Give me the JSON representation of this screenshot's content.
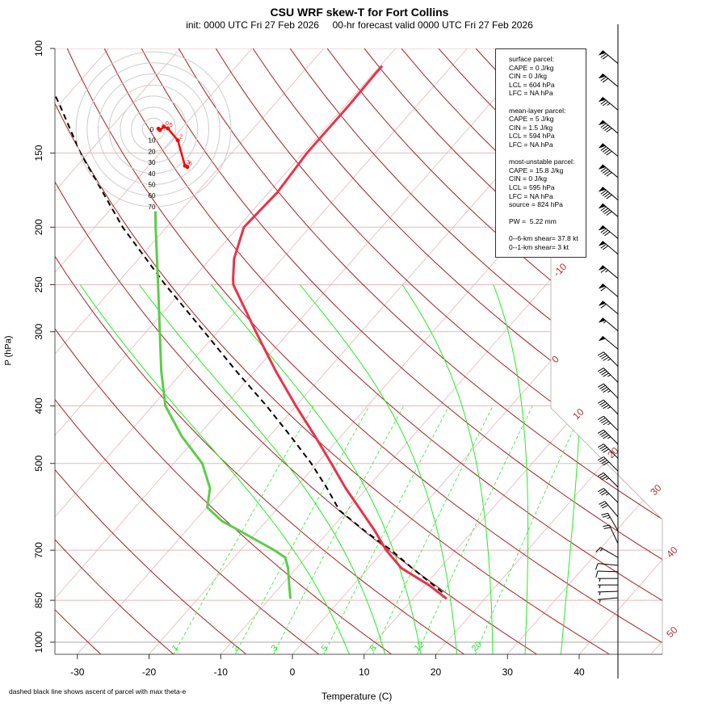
{
  "chart_data": {
    "type": "skew-t",
    "title": "CSU WRF skew-T for Fort Collins",
    "subtitle": "init: 0000 UTC Fri 27 Feb 2026     00-hr forecast valid 0000 UTC Fri 27 Feb 2026",
    "xlabel": "Temperature (C)",
    "ylabel": "P (hPa)",
    "x_ticks": [
      -30,
      -20,
      -10,
      0,
      10,
      20,
      30,
      40
    ],
    "y_ticks": [
      100,
      150,
      200,
      250,
      300,
      400,
      500,
      700,
      850,
      1000
    ],
    "xlim": [
      -33,
      51.5
    ],
    "ylim": [
      1048,
      100
    ],
    "y_scale": "log",
    "isotherm_labels": [
      -10,
      0,
      10,
      20,
      30,
      40,
      50
    ],
    "mixing_ratio_labels": [
      "1",
      "2",
      "3",
      "5",
      "8",
      "12",
      "20"
    ],
    "mixing_ratio_gkg": [
      1,
      2,
      3,
      5,
      8,
      12,
      20
    ],
    "dry_adiabats_theta_C": [
      -50,
      -40,
      -30,
      -20,
      -10,
      0,
      10,
      20,
      30,
      40,
      50,
      60,
      70,
      80,
      90,
      100,
      110,
      120,
      130,
      140,
      150,
      160,
      170,
      180,
      190,
      200
    ],
    "moist_adiabats_T1000_C": [
      8,
      13,
      18,
      23,
      28,
      32.5,
      37.5
    ],
    "colors": {
      "temperature": "#e8334a",
      "dewpoint": "#5ccc4a",
      "parcel": "#000000",
      "dry_adiabat": "#a52020",
      "isotherm": "#e8b4b4",
      "moist_adiabat": "#22ee22",
      "mixing_ratio": "#22ee22",
      "hodograph": "#ff0000",
      "isotherm_label": "#b03030"
    },
    "temperature": [
      {
        "p": 845,
        "t": 14.7
      },
      {
        "p": 800,
        "t": 10.4
      },
      {
        "p": 750,
        "t": 4.6
      },
      {
        "p": 700,
        "t": 0.3
      },
      {
        "p": 650,
        "t": -3.6
      },
      {
        "p": 600,
        "t": -8.1
      },
      {
        "p": 550,
        "t": -13.0
      },
      {
        "p": 500,
        "t": -18.0
      },
      {
        "p": 450,
        "t": -23.6
      },
      {
        "p": 400,
        "t": -30.0
      },
      {
        "p": 350,
        "t": -37.0
      },
      {
        "p": 300,
        "t": -44.7
      },
      {
        "p": 250,
        "t": -53.6
      },
      {
        "p": 244,
        "t": -54.4
      },
      {
        "p": 226,
        "t": -56.7
      },
      {
        "p": 200,
        "t": -59.2
      },
      {
        "p": 175,
        "t": -58.8
      },
      {
        "p": 150,
        "t": -59.5
      },
      {
        "p": 125,
        "t": -59.5
      },
      {
        "p": 110,
        "t": -59.7
      },
      {
        "p": 107,
        "t": -59.7
      }
    ],
    "dewpoint": [
      {
        "p": 845,
        "t": -7.1
      },
      {
        "p": 800,
        "t": -9.0
      },
      {
        "p": 750,
        "t": -11.2
      },
      {
        "p": 720,
        "t": -12.9
      },
      {
        "p": 700,
        "t": -15.3
      },
      {
        "p": 650,
        "t": -22.4
      },
      {
        "p": 625,
        "t": -26.2
      },
      {
        "p": 593,
        "t": -29.9
      },
      {
        "p": 550,
        "t": -31.9
      },
      {
        "p": 500,
        "t": -36.0
      },
      {
        "p": 450,
        "t": -42.2
      },
      {
        "p": 400,
        "t": -48.2
      },
      {
        "p": 350,
        "t": -53.0
      },
      {
        "p": 300,
        "t": -58.1
      },
      {
        "p": 250,
        "t": -64.1
      },
      {
        "p": 200,
        "t": -71.5
      },
      {
        "p": 188,
        "t": -73.5
      }
    ],
    "parcel": [
      {
        "p": 824,
        "t": 13.3
      },
      {
        "p": 750,
        "t": 6.1
      },
      {
        "p": 700,
        "t": 1.0
      },
      {
        "p": 650,
        "t": -5.0
      },
      {
        "p": 600,
        "t": -11.1
      },
      {
        "p": 550,
        "t": -15.6
      },
      {
        "p": 500,
        "t": -20.8
      },
      {
        "p": 450,
        "t": -27.0
      },
      {
        "p": 400,
        "t": -34.1
      },
      {
        "p": 350,
        "t": -42.5
      },
      {
        "p": 300,
        "t": -51.9
      },
      {
        "p": 250,
        "t": -63.1
      },
      {
        "p": 200,
        "t": -76.1
      },
      {
        "p": 150,
        "t": -91.1
      },
      {
        "p": 125,
        "t": -99.7
      },
      {
        "p": 106,
        "t": -107.7
      }
    ],
    "wind": [
      {
        "p": 106,
        "dir": 310,
        "spd": 70
      },
      {
        "p": 116,
        "dir": 310,
        "spd": 70
      },
      {
        "p": 127,
        "dir": 310,
        "spd": 75
      },
      {
        "p": 139,
        "dir": 310,
        "spd": 90
      },
      {
        "p": 152,
        "dir": 310,
        "spd": 90
      },
      {
        "p": 165,
        "dir": 310,
        "spd": 90
      },
      {
        "p": 180,
        "dir": 310,
        "spd": 90
      },
      {
        "p": 192,
        "dir": 310,
        "spd": 90
      },
      {
        "p": 209,
        "dir": 310,
        "spd": 80
      },
      {
        "p": 222,
        "dir": 310,
        "spd": 70
      },
      {
        "p": 244,
        "dir": 310,
        "spd": 65
      },
      {
        "p": 262,
        "dir": 310,
        "spd": 60
      },
      {
        "p": 280,
        "dir": 310,
        "spd": 60
      },
      {
        "p": 299,
        "dir": 310,
        "spd": 55
      },
      {
        "p": 321,
        "dir": 310,
        "spd": 50
      },
      {
        "p": 343,
        "dir": 315,
        "spd": 45
      },
      {
        "p": 365,
        "dir": 315,
        "spd": 45
      },
      {
        "p": 388,
        "dir": 315,
        "spd": 45
      },
      {
        "p": 413,
        "dir": 315,
        "spd": 45
      },
      {
        "p": 440,
        "dir": 315,
        "spd": 45
      },
      {
        "p": 464,
        "dir": 315,
        "spd": 45
      },
      {
        "p": 490,
        "dir": 315,
        "spd": 40
      },
      {
        "p": 515,
        "dir": 315,
        "spd": 40
      },
      {
        "p": 548,
        "dir": 315,
        "spd": 35
      },
      {
        "p": 582,
        "dir": 315,
        "spd": 35
      },
      {
        "p": 615,
        "dir": 320,
        "spd": 30
      },
      {
        "p": 649,
        "dir": 330,
        "spd": 25
      },
      {
        "p": 682,
        "dir": 335,
        "spd": 20
      },
      {
        "p": 720,
        "dir": 300,
        "spd": 15
      },
      {
        "p": 742,
        "dir": 275,
        "spd": 10
      },
      {
        "p": 761,
        "dir": 272,
        "spd": 10
      },
      {
        "p": 781,
        "dir": 270,
        "spd": 5
      },
      {
        "p": 801,
        "dir": 270,
        "spd": 5
      },
      {
        "p": 821,
        "dir": 268,
        "spd": 5
      },
      {
        "p": 842,
        "dir": 265,
        "spd": 5
      }
    ],
    "hodograph": {
      "ring_labels": [
        "0",
        "10",
        "20",
        "30",
        "40",
        "50",
        "60",
        "70"
      ],
      "ring_step_kt": 10,
      "points_kt": [
        {
          "u": 4.5,
          "v": -0.5
        },
        {
          "u": 5.8,
          "v": 0.7
        },
        {
          "u": 9.5,
          "v": -2.2
        },
        {
          "u": 13,
          "v": -0.7
        },
        {
          "u": 22,
          "v": 10
        },
        {
          "u": 28.5,
          "v": 33
        },
        {
          "u": 30.6,
          "v": 34
        }
      ],
      "point_labels": [
        "0",
        "0",
        "5",
        "2",
        "3",
        "6"
      ]
    }
  },
  "parcel_info": {
    "surface": [
      "surface parcel:",
      "CAPE = 0 J/kg",
      "CIN = 0 J/kg",
      "LCL = 604 hPa",
      "LFC = NA hPa"
    ],
    "mean_layer": [
      "mean-layer parcel:",
      "CAPE = 5 J/kg",
      "CIN = 1.5 J/kg",
      "LCL = 594 hPa",
      "LFC = NA hPa"
    ],
    "most_unstable": [
      "most-unstable parcel:",
      "CAPE = 15.8 J/kg",
      "CIN = 0 J/kg",
      "LCL = 595 hPa",
      "LFC = NA hPa",
      "source = 824 hPa"
    ],
    "pw": "PW =  5.22 mm",
    "shear": [
      "0--6-km shear= 37.8 kt",
      "0--1-km shear= 3 kt"
    ]
  },
  "footnote": "dashed black line shows ascent of parcel with max theta-e"
}
